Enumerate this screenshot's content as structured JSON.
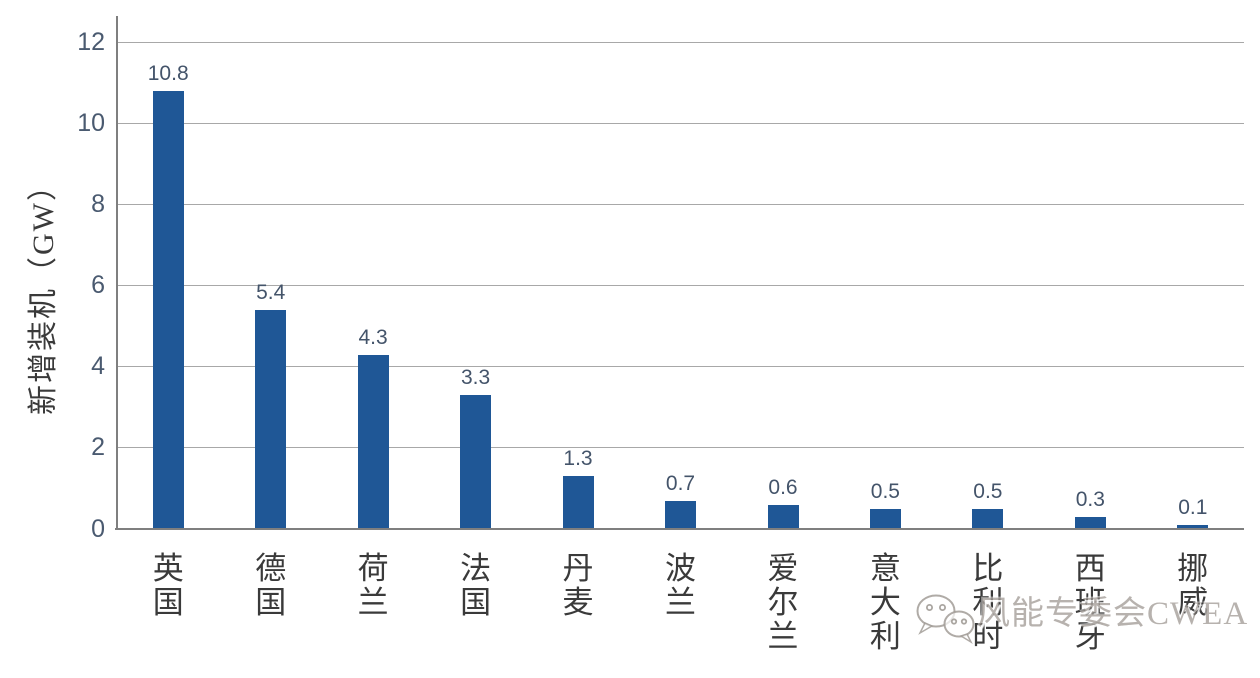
{
  "chart_data": {
    "type": "bar",
    "categories": [
      "英国",
      "德国",
      "荷兰",
      "法国",
      "丹麦",
      "波兰",
      "爱尔兰",
      "意大利",
      "比利时",
      "西班牙",
      "挪威"
    ],
    "values": [
      10.8,
      5.4,
      4.3,
      3.3,
      1.3,
      0.7,
      0.6,
      0.5,
      0.5,
      0.3,
      0.1
    ],
    "value_labels": [
      "10.8",
      "5.4",
      "4.3",
      "3.3",
      "1.3",
      "0.7",
      "0.6",
      "0.5",
      "0.5",
      "0.3",
      "0.1"
    ],
    "title": "",
    "xlabel": "",
    "ylabel": "新增装机（GW）",
    "ylim": [
      0,
      12
    ],
    "yticks": [
      0,
      2,
      4,
      6,
      8,
      10,
      12
    ],
    "grid": true,
    "legend": "none"
  },
  "colors": {
    "bar": "#1f5796",
    "tick_label": "#4a5a70",
    "value_label": "#44546a",
    "category_label": "#3a3a3a",
    "gridline": "#a8a8a8",
    "axis_line": "#7f7f7f",
    "background": "#ffffff",
    "watermark": "#8a837c"
  },
  "watermark": {
    "icon": "wechat-icon",
    "text": "风能专委会CWEA"
  }
}
